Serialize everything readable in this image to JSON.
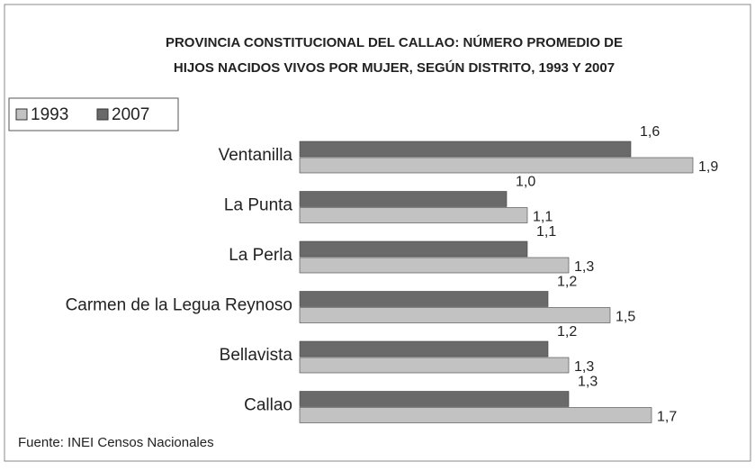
{
  "chart_data": {
    "type": "barh",
    "title": [
      "PROVINCIA CONSTITUCIONAL DEL CALLAO: NÚMERO PROMEDIO DE",
      "HIJOS NACIDOS VIVOS POR MUJER, SEGÚN DISTRITO, 1993 Y 2007"
    ],
    "categories": [
      "Ventanilla",
      "La Punta",
      "La Perla",
      "Carmen de la Legua Reynoso",
      "Bellavista",
      "Callao"
    ],
    "series": [
      {
        "name": "1993",
        "color": "#c2c2c2",
        "values": [
          1.9,
          1.1,
          1.3,
          1.5,
          1.3,
          1.7
        ],
        "value_labels": [
          "1,9",
          "1,1",
          "1,3",
          "1,5",
          "1,3",
          "1,7"
        ]
      },
      {
        "name": "2007",
        "color": "#6a6a6a",
        "values": [
          1.6,
          1.0,
          1.1,
          1.2,
          1.2,
          1.3
        ],
        "value_labels": [
          "1,6",
          "1,0",
          "1,1",
          "1,2",
          "1,2",
          "1,3"
        ]
      }
    ],
    "source": "Fuente: INEI Censos Nacionales"
  }
}
